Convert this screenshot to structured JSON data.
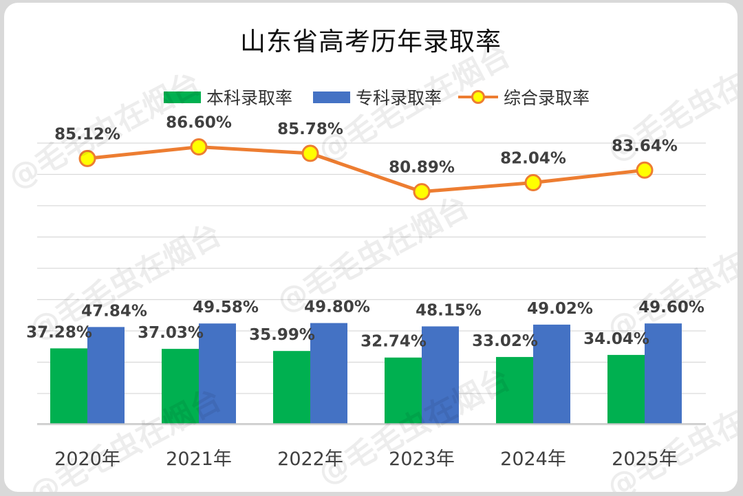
{
  "watermark": "@毛毛虫在烟台",
  "chart_data": {
    "type": "bar",
    "title": "山东省高考历年录取率",
    "categories": [
      "2020年",
      "2021年",
      "2022年",
      "2023年",
      "2024年",
      "2025年"
    ],
    "series": [
      {
        "name": "本科录取率",
        "kind": "bar",
        "color": "#00b050",
        "values": [
          37.28,
          37.03,
          35.99,
          32.74,
          33.02,
          34.04
        ],
        "labels": [
          "37.28%",
          "37.03%",
          "35.99%",
          "32.74%",
          "33.02%",
          "34.04%"
        ]
      },
      {
        "name": "专科录取率",
        "kind": "bar",
        "color": "#4472c4",
        "values": [
          47.84,
          49.58,
          49.8,
          48.15,
          49.02,
          49.6
        ],
        "labels": [
          "47.84%",
          "49.58%",
          "49.80%",
          "48.15%",
          "49.02%",
          "49.60%"
        ]
      },
      {
        "name": "综合录取率",
        "kind": "line",
        "color": "#ed7d31",
        "marker_fill": "#ffff00",
        "values": [
          85.12,
          86.6,
          85.78,
          80.89,
          82.04,
          83.64
        ],
        "labels": [
          "85.12%",
          "86.60%",
          "85.78%",
          "80.89%",
          "82.04%",
          "83.64%"
        ]
      }
    ],
    "legend_position": "top",
    "grid": true,
    "y_axis_visible": false
  }
}
